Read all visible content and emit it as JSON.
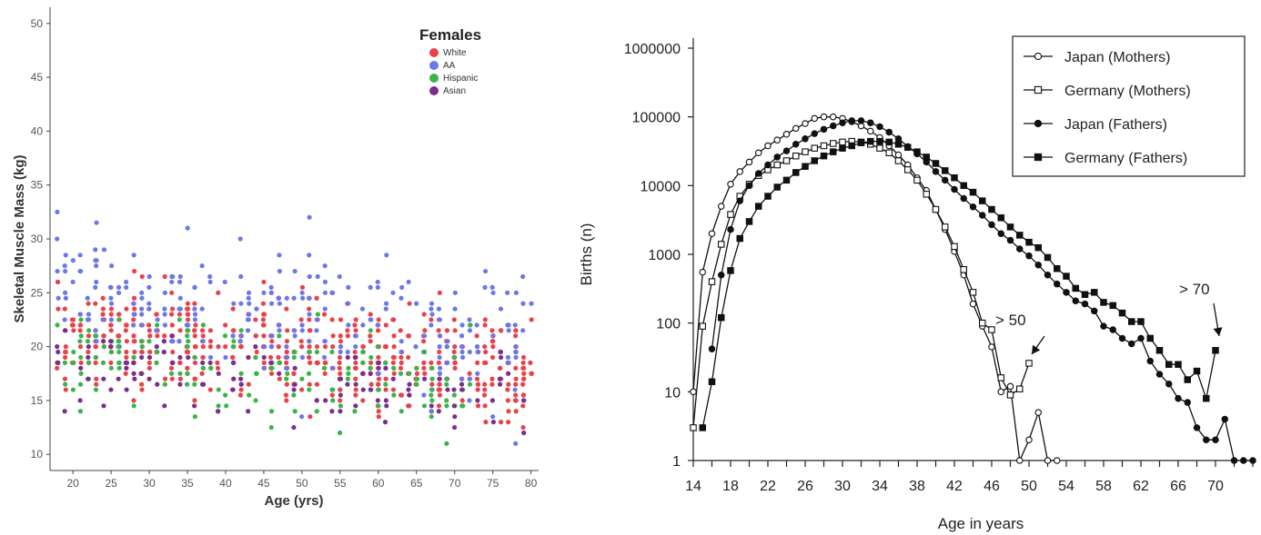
{
  "chart_data": [
    {
      "type": "scatter",
      "title": "",
      "xlabel": "Age (yrs)",
      "ylabel": "Skeletal Muscle Mass (kg)",
      "xlim": [
        17,
        81
      ],
      "ylim": [
        8.5,
        51.5
      ],
      "xticks": [
        20,
        25,
        30,
        35,
        40,
        45,
        50,
        55,
        60,
        65,
        70,
        75,
        80
      ],
      "yticks": [
        10,
        15,
        20,
        25,
        30,
        35,
        40,
        45,
        50
      ],
      "legend_title": "Females",
      "legend_position": "top-right",
      "grid": false,
      "series": [
        {
          "name": "White",
          "color": "#e8424a",
          "model": {
            "age_min": 18,
            "age_max": 80,
            "mean_at_30": 20.5,
            "slope_per_year": -0.055,
            "sd": 2.4
          }
        },
        {
          "name": "AA",
          "color": "#6b78e8",
          "model": {
            "age_min": 18,
            "age_max": 80,
            "mean_at_30": 24.5,
            "slope_per_year": -0.09,
            "sd": 3.3
          }
        },
        {
          "name": "Hispanic",
          "color": "#3ab54a",
          "model": {
            "age_min": 18,
            "age_max": 72,
            "mean_at_30": 18.8,
            "slope_per_year": -0.05,
            "sd": 2.3
          }
        },
        {
          "name": "Asian",
          "color": "#7b2e8e",
          "model": {
            "age_min": 18,
            "age_max": 80,
            "mean_at_30": 17.5,
            "slope_per_year": -0.05,
            "sd": 1.8
          }
        }
      ]
    },
    {
      "type": "line",
      "title": "",
      "xlabel": "Age in years",
      "ylabel": "Births (n)",
      "yscale": "log",
      "xlim": [
        14,
        75
      ],
      "ylim": [
        1,
        1000000
      ],
      "xticks": [
        14,
        18,
        22,
        26,
        30,
        34,
        38,
        42,
        46,
        50,
        54,
        58,
        62,
        66,
        70
      ],
      "ytick_labels": [
        "1",
        "10",
        "100",
        "1000",
        "10000",
        "100000",
        "1000000"
      ],
      "legend_position": "top-right",
      "grid": false,
      "series": [
        {
          "name": "Japan (Mothers)",
          "marker": "circle-open",
          "x": [
            14,
            15,
            16,
            17,
            18,
            19,
            20,
            21,
            22,
            23,
            24,
            25,
            26,
            27,
            28,
            29,
            30,
            31,
            32,
            33,
            34,
            35,
            36,
            37,
            38,
            39,
            40,
            41,
            42,
            43,
            44,
            45,
            46,
            47,
            48,
            49,
            50,
            51,
            52,
            53
          ],
          "y": [
            10,
            550,
            2000,
            5000,
            10500,
            16000,
            22000,
            30000,
            38000,
            46000,
            56000,
            68000,
            80000,
            95000,
            100000,
            100000,
            95000,
            85000,
            74000,
            62000,
            50000,
            38000,
            28000,
            20000,
            13000,
            8500,
            4500,
            2300,
            1100,
            500,
            190,
            90,
            45,
            10,
            12,
            1,
            2,
            5,
            1,
            1
          ]
        },
        {
          "name": "Germany (Mothers)",
          "marker": "square-open",
          "x": [
            14,
            15,
            16,
            17,
            18,
            19,
            20,
            21,
            22,
            23,
            24,
            25,
            26,
            27,
            28,
            29,
            30,
            31,
            32,
            33,
            34,
            35,
            36,
            37,
            38,
            39,
            40,
            41,
            42,
            43,
            44,
            45,
            46,
            47,
            48,
            49,
            50
          ],
          "y": [
            3,
            90,
            400,
            1400,
            3800,
            7000,
            10500,
            14000,
            17000,
            20000,
            23000,
            27000,
            31000,
            35000,
            38000,
            41000,
            43000,
            44000,
            43000,
            40000,
            35000,
            30000,
            23000,
            17000,
            12000,
            7500,
            4500,
            2500,
            1300,
            600,
            280,
            100,
            80,
            16,
            9,
            11,
            26
          ]
        },
        {
          "name": "Japan (Fathers)",
          "marker": "circle-filled",
          "x": [
            16,
            17,
            18,
            19,
            20,
            21,
            22,
            23,
            24,
            25,
            26,
            27,
            28,
            29,
            30,
            31,
            32,
            33,
            34,
            35,
            36,
            37,
            38,
            39,
            40,
            41,
            42,
            43,
            44,
            45,
            46,
            47,
            48,
            49,
            50,
            51,
            52,
            53,
            54,
            55,
            56,
            57,
            58,
            59,
            60,
            61,
            62,
            63,
            64,
            65,
            66,
            67,
            68,
            69,
            70,
            71,
            72,
            73,
            74
          ],
          "y": [
            42,
            500,
            2300,
            6000,
            10000,
            15000,
            20000,
            26000,
            32000,
            40000,
            48000,
            57000,
            66000,
            74000,
            82000,
            88000,
            88000,
            82000,
            72000,
            60000,
            48000,
            37000,
            29000,
            22000,
            16000,
            12000,
            8800,
            6500,
            4900,
            3700,
            2700,
            2000,
            1600,
            1200,
            950,
            700,
            500,
            370,
            280,
            210,
            190,
            150,
            90,
            80,
            60,
            50,
            60,
            28,
            18,
            13,
            8,
            7,
            3,
            2,
            2,
            4,
            1,
            1,
            1
          ]
        },
        {
          "name": "Germany (Fathers)",
          "marker": "square-filled",
          "x": [
            15,
            16,
            17,
            18,
            19,
            20,
            21,
            22,
            23,
            24,
            25,
            26,
            27,
            28,
            29,
            30,
            31,
            32,
            33,
            34,
            35,
            36,
            37,
            38,
            39,
            40,
            41,
            42,
            43,
            44,
            45,
            46,
            47,
            48,
            49,
            50,
            51,
            52,
            53,
            54,
            55,
            56,
            57,
            58,
            59,
            60,
            61,
            62,
            63,
            64,
            65,
            66,
            67,
            68,
            69,
            70
          ],
          "y": [
            3,
            14,
            120,
            580,
            1700,
            3000,
            5000,
            7000,
            9500,
            12000,
            15500,
            19000,
            23000,
            27000,
            31000,
            35000,
            38000,
            42000,
            44000,
            44000,
            43000,
            40000,
            36000,
            31000,
            26000,
            21000,
            16500,
            13000,
            10000,
            8000,
            6000,
            4500,
            3400,
            2500,
            1900,
            1500,
            1250,
            900,
            620,
            480,
            320,
            260,
            280,
            200,
            180,
            140,
            105,
            105,
            60,
            40,
            25,
            25,
            15,
            20,
            8,
            40
          ]
        }
      ],
      "annotations": [
        {
          "text": "> 50",
          "x": 50,
          "y": 60
        },
        {
          "text": "> 70",
          "x": 69,
          "y": 330
        }
      ]
    }
  ]
}
